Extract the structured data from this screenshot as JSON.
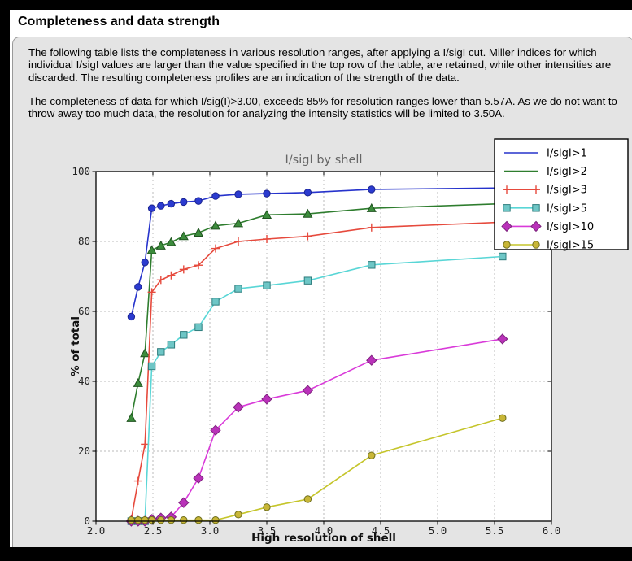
{
  "window": {
    "title": "Completeness and data strength"
  },
  "paragraphs": {
    "p1": "The following table lists the completeness in various resolution ranges, after applying a I/sigI cut. Miller indices for which individual I/sigI values are larger than the value specified in the top row of the table, are retained, while other intensities are discarded. The resulting completeness profiles are an indication of the strength of the data.",
    "p2": "The completeness of data for which I/sig(I)>3.00, exceeds  85% for resolution ranges lower than 5.57A. As we do not want to throw away too much data, the resolution for analyzing the intensity statistics will be limited to 3.50A."
  },
  "chart_data": {
    "type": "line",
    "title": "I/sigI by shell",
    "xlabel": "High resolution of shell",
    "ylabel": "% of total",
    "xlim": [
      2.0,
      6.0
    ],
    "ylim": [
      0,
      100
    ],
    "xticks": [
      2.0,
      2.5,
      3.0,
      3.5,
      4.0,
      4.5,
      5.0,
      5.5,
      6.0
    ],
    "yticks": [
      0,
      20,
      40,
      60,
      80,
      100
    ],
    "grid": true,
    "legend_position": "upper right",
    "title_color": "#666666",
    "axis_color": "#000000",
    "grid_color": "#bbbbbb",
    "x": [
      2.31,
      2.37,
      2.43,
      2.49,
      2.57,
      2.66,
      2.77,
      2.9,
      3.05,
      3.25,
      3.5,
      3.86,
      4.42,
      5.57
    ],
    "series": [
      {
        "name": "I/sigI>1",
        "color": "#2633cc",
        "marker": "circle",
        "marker_fill": "#2b3bd0",
        "marker_edge": "#1b2490",
        "legend_marker": false,
        "values": [
          58.5,
          67.0,
          74.0,
          89.5,
          90.2,
          90.8,
          91.3,
          91.6,
          93.0,
          93.5,
          93.7,
          94.0,
          94.9,
          95.3
        ]
      },
      {
        "name": "I/sigI>2",
        "color": "#2e7d2e",
        "marker": "triangle",
        "marker_fill": "#3c8c3c",
        "marker_edge": "#1f521f",
        "legend_marker": false,
        "values": [
          29.5,
          39.5,
          48.0,
          77.5,
          78.8,
          79.8,
          81.5,
          82.5,
          84.5,
          85.2,
          87.6,
          87.9,
          89.5,
          90.8
        ]
      },
      {
        "name": "I/sigI>3",
        "color": "#e64a3d",
        "marker": "plus",
        "marker_fill": "#e64a3d",
        "marker_edge": "#e64a3d",
        "legend_marker": true,
        "values": [
          0.5,
          11.5,
          22.0,
          65.5,
          69.0,
          70.3,
          72.0,
          73.2,
          78.0,
          80.0,
          80.7,
          81.5,
          84.0,
          85.5
        ]
      },
      {
        "name": "I/sigI>5",
        "color": "#59d6d6",
        "marker": "square",
        "marker_fill": "#6ec6c6",
        "marker_edge": "#2e7d7d",
        "legend_marker": true,
        "values": [
          0.0,
          0.0,
          0.0,
          44.3,
          48.4,
          50.5,
          53.3,
          55.5,
          62.8,
          66.5,
          67.4,
          68.8,
          73.3,
          75.7
        ]
      },
      {
        "name": "I/sigI>10",
        "color": "#d93ad9",
        "marker": "diamond",
        "marker_fill": "#b932b9",
        "marker_edge": "#7e227e",
        "legend_marker": true,
        "values": [
          0.0,
          0.0,
          0.0,
          0.5,
          0.9,
          1.2,
          5.3,
          12.3,
          26.0,
          32.6,
          34.9,
          37.4,
          46.0,
          52.1
        ]
      },
      {
        "name": "I/sigI>15",
        "color": "#c5c52b",
        "marker": "circle",
        "marker_fill": "#c8b637",
        "marker_edge": "#6f6f1d",
        "legend_marker": true,
        "values": [
          0.3,
          0.3,
          0.3,
          0.3,
          0.3,
          0.3,
          0.3,
          0.3,
          0.3,
          1.9,
          4.0,
          6.3,
          18.8,
          29.5
        ]
      }
    ]
  }
}
